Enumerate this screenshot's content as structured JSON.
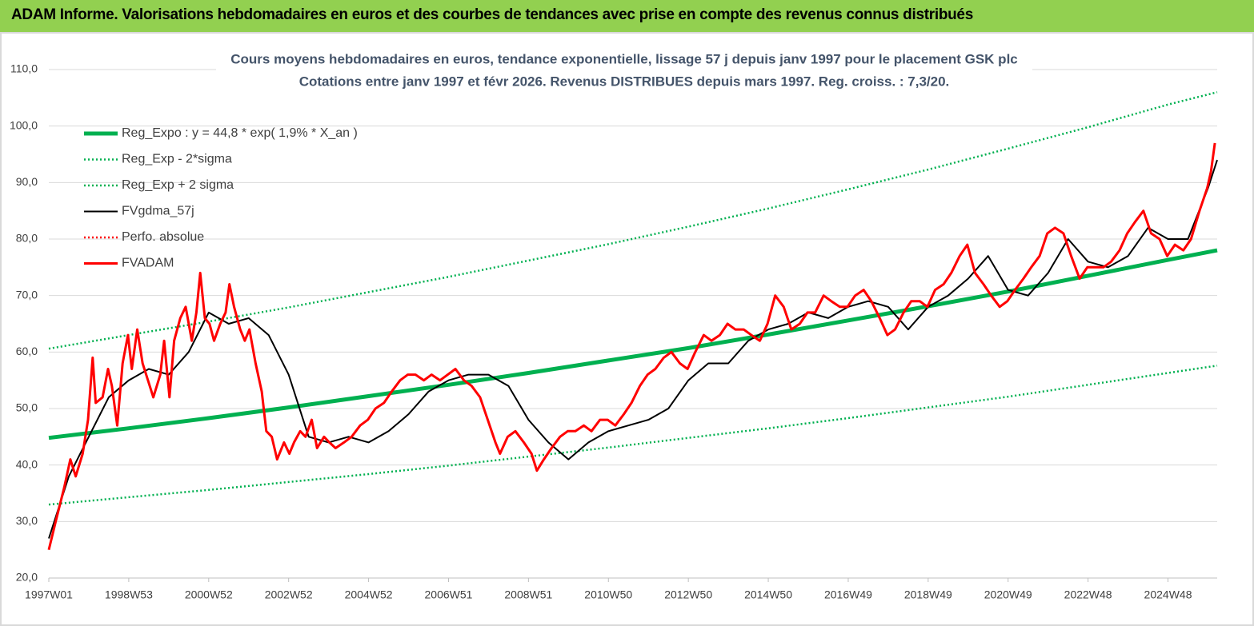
{
  "header": {
    "title": "ADAM Informe. Valorisations hebdomadaires en euros et des courbes de tendances avec prise en compte des revenus connus distribués"
  },
  "chart_data": {
    "type": "line",
    "title": "Cours moyens hebdomadaires en euros, tendance exponentielle, lissage 57 j depuis janv 1997 pour le placement GSK plc",
    "subtitle": "Cotations entre janv 1997 et févr 2026. Revenus DISTRIBUES depuis mars 1997. Reg. croiss. : 7,3/20.",
    "xlim": [
      0,
      1520
    ],
    "xticks": [
      {
        "value": 0,
        "label": "1997W01"
      },
      {
        "value": 104,
        "label": "1998W53"
      },
      {
        "value": 208,
        "label": "2000W52"
      },
      {
        "value": 312,
        "label": "2002W52"
      },
      {
        "value": 416,
        "label": "2004W52"
      },
      {
        "value": 520,
        "label": "2006W51"
      },
      {
        "value": 624,
        "label": "2008W51"
      },
      {
        "value": 728,
        "label": "2010W50"
      },
      {
        "value": 832,
        "label": "2012W50"
      },
      {
        "value": 936,
        "label": "2014W50"
      },
      {
        "value": 1040,
        "label": "2016W49"
      },
      {
        "value": 1144,
        "label": "2018W49"
      },
      {
        "value": 1248,
        "label": "2020W49"
      },
      {
        "value": 1352,
        "label": "2022W48"
      },
      {
        "value": 1456,
        "label": "2024W48"
      }
    ],
    "ylim": [
      20,
      110
    ],
    "yticks": [
      {
        "value": 20,
        "label": "20,0"
      },
      {
        "value": 30,
        "label": "30,0"
      },
      {
        "value": 40,
        "label": "40,0"
      },
      {
        "value": 50,
        "label": "50,0"
      },
      {
        "value": 60,
        "label": "60,0"
      },
      {
        "value": 70,
        "label": "70,0"
      },
      {
        "value": 80,
        "label": "80,0"
      },
      {
        "value": 90,
        "label": "90,0"
      },
      {
        "value": 100,
        "label": "100,0"
      },
      {
        "value": 110,
        "label": "110,0"
      }
    ],
    "grid": true,
    "legend": "upper left",
    "series": [
      {
        "name": "Reg_Expo : y = 44,8 * exp( 1,9% *  X_an )",
        "color": "#00b050",
        "style": "solid",
        "x": [
          0,
          104,
          208,
          312,
          416,
          520,
          624,
          728,
          832,
          936,
          1040,
          1144,
          1248,
          1352,
          1456,
          1520
        ],
        "values": [
          44.8,
          46.5,
          48.3,
          50.2,
          52.2,
          54.2,
          56.3,
          58.5,
          60.7,
          63.1,
          65.6,
          68.1,
          70.7,
          73.5,
          76.3,
          78.0
        ]
      },
      {
        "name": "Reg_Exp - 2*sigma",
        "color": "#00b050",
        "style": "dotted",
        "x": [
          0,
          104,
          208,
          312,
          416,
          520,
          624,
          728,
          832,
          936,
          1040,
          1144,
          1248,
          1352,
          1456,
          1520
        ],
        "values": [
          33.0,
          34.3,
          35.6,
          37.0,
          38.4,
          39.9,
          41.5,
          43.1,
          44.8,
          46.5,
          48.3,
          50.2,
          52.1,
          54.2,
          56.3,
          57.6
        ]
      },
      {
        "name": "Reg_Exp + 2 sigma",
        "color": "#00b050",
        "style": "dotted",
        "x": [
          0,
          104,
          208,
          312,
          416,
          520,
          624,
          728,
          832,
          936,
          1040,
          1144,
          1248,
          1352,
          1456,
          1520
        ],
        "values": [
          60.6,
          63.0,
          65.4,
          67.9,
          70.6,
          73.3,
          76.2,
          79.1,
          82.2,
          85.4,
          88.8,
          92.3,
          96.0,
          99.8,
          103.8,
          106.0
        ]
      },
      {
        "name": "FVgdma_57j",
        "color": "#000000",
        "style": "solid",
        "x": [
          0,
          26,
          52,
          78,
          104,
          130,
          156,
          182,
          208,
          234,
          260,
          286,
          312,
          338,
          364,
          390,
          416,
          442,
          468,
          494,
          520,
          546,
          572,
          598,
          624,
          650,
          676,
          702,
          728,
          754,
          780,
          806,
          832,
          858,
          884,
          910,
          936,
          962,
          988,
          1014,
          1040,
          1066,
          1092,
          1118,
          1144,
          1170,
          1196,
          1222,
          1248,
          1274,
          1300,
          1326,
          1352,
          1378,
          1404,
          1430,
          1456,
          1482,
          1508,
          1520
        ],
        "values": [
          27,
          38,
          45,
          52,
          55,
          57,
          56,
          60,
          67,
          65,
          66,
          63,
          56,
          45,
          44,
          45,
          44,
          46,
          49,
          53,
          55,
          56,
          56,
          54,
          48,
          44,
          41,
          44,
          46,
          47,
          48,
          50,
          55,
          58,
          58,
          62,
          64,
          65,
          67,
          66,
          68,
          69,
          68,
          64,
          68,
          70,
          73,
          77,
          71,
          70,
          74,
          80,
          76,
          75,
          77,
          82,
          80,
          80,
          89,
          94
        ]
      },
      {
        "name": "Perfo. absolue",
        "color": "#ff0000",
        "style": "dotted",
        "x": [],
        "values": []
      },
      {
        "name": "FVADAM",
        "color": "#ff0000",
        "style": "solid",
        "x": [
          0,
          9,
          20,
          28,
          35,
          44,
          51,
          57,
          61,
          70,
          77,
          82,
          89,
          96,
          103,
          108,
          115,
          122,
          129,
          136,
          145,
          150,
          157,
          163,
          171,
          178,
          186,
          192,
          197,
          203,
          209,
          215,
          223,
          230,
          235,
          241,
          249,
          255,
          261,
          269,
          277,
          283,
          290,
          297,
          306,
          313,
          319,
          327,
          334,
          342,
          349,
          358,
          365,
          373,
          384,
          394,
          405,
          415,
          425,
          436,
          446,
          457,
          467,
          477,
          488,
          498,
          509,
          519,
          529,
          540,
          550,
          561,
          571,
          581,
          587,
          597,
          607,
          618,
          628,
          635,
          644,
          654,
          665,
          675,
          685,
          696,
          706,
          717,
          727,
          737,
          748,
          758,
          769,
          779,
          789,
          800,
          810,
          821,
          831,
          841,
          852,
          862,
          873,
          883,
          893,
          904,
          914,
          925,
          935,
          945,
          956,
          966,
          977,
          987,
          997,
          1008,
          1018,
          1029,
          1039,
          1049,
          1060,
          1070,
          1081,
          1091,
          1101,
          1112,
          1122,
          1133,
          1143,
          1153,
          1164,
          1174,
          1185,
          1195,
          1205,
          1216,
          1226,
          1237,
          1247,
          1257,
          1268,
          1278,
          1289,
          1299,
          1309,
          1320,
          1330,
          1341,
          1351,
          1361,
          1372,
          1382,
          1393,
          1403,
          1413,
          1424,
          1434,
          1445,
          1455,
          1465,
          1476,
          1486,
          1497,
          1507,
          1512,
          1517
        ],
        "values": [
          25,
          30,
          36,
          41,
          38,
          42,
          48,
          59,
          51,
          52,
          57,
          54,
          47,
          58,
          63,
          57,
          64,
          58,
          55,
          52,
          56,
          62,
          52,
          62,
          66,
          68,
          62,
          67,
          74,
          66,
          65,
          62,
          65,
          67,
          72,
          68,
          64,
          62,
          64,
          58,
          53,
          46,
          45,
          41,
          44,
          42,
          44,
          46,
          45,
          48,
          43,
          45,
          44,
          43,
          44,
          45,
          47,
          48,
          50,
          51,
          53,
          55,
          56,
          56,
          55,
          56,
          55,
          56,
          57,
          55,
          54,
          52,
          48,
          44,
          42,
          45,
          46,
          44,
          42,
          39,
          41,
          43,
          45,
          46,
          46,
          47,
          46,
          48,
          48,
          47,
          49,
          51,
          54,
          56,
          57,
          59,
          60,
          58,
          57,
          60,
          63,
          62,
          63,
          65,
          64,
          64,
          63,
          62,
          65,
          70,
          68,
          64,
          65,
          67,
          67,
          70,
          69,
          68,
          68,
          70,
          71,
          69,
          66,
          63,
          64,
          67,
          69,
          69,
          68,
          71,
          72,
          74,
          77,
          79,
          74,
          72,
          70,
          68,
          69,
          71,
          73,
          75,
          77,
          81,
          82,
          81,
          77,
          73,
          75,
          75,
          75,
          76,
          78,
          81,
          83,
          85,
          81,
          80,
          77,
          79,
          78,
          80,
          85,
          89,
          92,
          97
        ]
      }
    ]
  }
}
